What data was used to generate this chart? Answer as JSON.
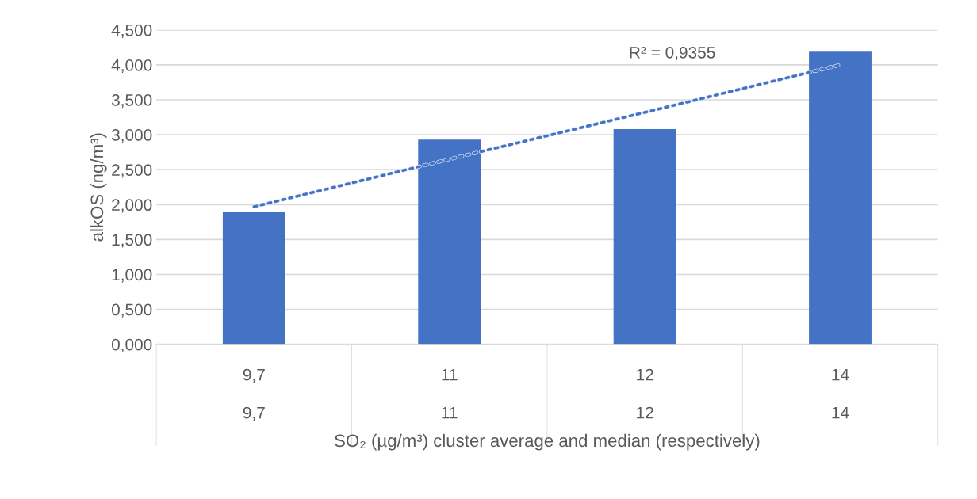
{
  "chart_data": {
    "type": "bar",
    "xlabel": "SO₂ (µg/m³) cluster average and median (respectively)",
    "ylabel": "alkOS (ng/m³)",
    "categories": [
      "9,7\n\n9,7",
      "11\n\n11",
      "12\n\n12",
      "14\n\n14"
    ],
    "series": [
      {
        "color": "#4472c4",
        "values": [
          1.89,
          2.93,
          3.08,
          4.19
        ]
      },
      {
        "type": "line",
        "color": "#4472c4",
        "line_style": "dotted",
        "values": [
          1.97,
          2.65,
          3.32,
          4.0
        ]
      }
    ],
    "ylim": [
      0,
      4.5
    ],
    "yticks": [
      {
        "value": 0,
        "label": "0,000"
      },
      {
        "value": 0.5,
        "label": "0,500"
      },
      {
        "value": 1,
        "label": "1,000"
      },
      {
        "value": 1.5,
        "label": "1,500"
      },
      {
        "value": 2,
        "label": "2,000"
      },
      {
        "value": 2.5,
        "label": "2,500"
      },
      {
        "value": 3,
        "label": "3,000"
      },
      {
        "value": 3.5,
        "label": "3,500"
      },
      {
        "value": 4,
        "label": "4,000"
      },
      {
        "value": 4.5,
        "label": "4,500"
      }
    ],
    "annotations": [
      "R² = 0,9355"
    ],
    "grid": "y",
    "legend": false
  }
}
